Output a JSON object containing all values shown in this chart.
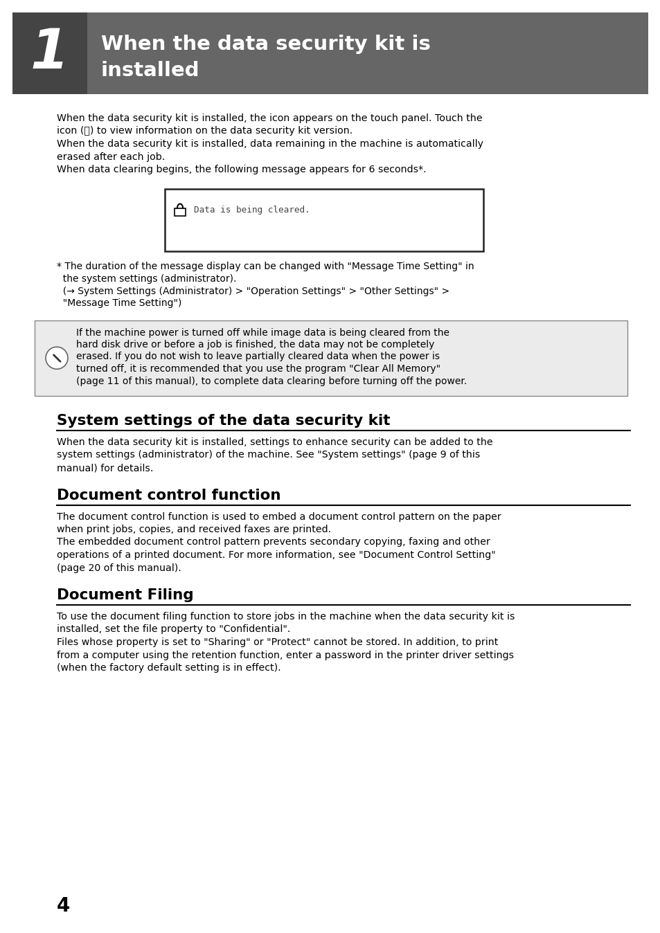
{
  "bg_color": "#ffffff",
  "header_bg_dark": "#444444",
  "header_bg_light": "#666666",
  "header_number": "1",
  "header_title_line1": "When the data security kit is",
  "header_title_line2": "installed",
  "body_line1": "When the data security kit is installed, the icon appears on the touch panel. Touch the",
  "body_line2": "icon (⚿) to view information on the data security kit version.",
  "body_line3": "When the data security kit is installed, data remaining in the machine is automatically",
  "body_line4": "erased after each job.",
  "body_line5": "When data clearing begins, the following message appears for 6 seconds*.",
  "dialog_text": "Data is being cleared.",
  "footnote_lines": [
    "* The duration of the message display can be changed with \"Message Time Setting\" in",
    "  the system settings (administrator).",
    "  (→ System Settings (Administrator) > \"Operation Settings\" > \"Other Settings\" >",
    "  \"Message Time Setting\")"
  ],
  "note_lines": [
    "If the machine power is turned off while image data is being cleared from the",
    "hard disk drive or before a job is finished, the data may not be completely",
    "erased. If you do not wish to leave partially cleared data when the power is",
    "turned off, it is recommended that you use the program \"Clear All Memory\"",
    "(page 11 of this manual), to complete data clearing before turning off the power."
  ],
  "section1_title": "System settings of the data security kit",
  "section1_lines": [
    "When the data security kit is installed, settings to enhance security can be added to the",
    "system settings (administrator) of the machine. See \"System settings\" (page 9 of this",
    "manual) for details."
  ],
  "section2_title": "Document control function",
  "section2_lines": [
    "The document control function is used to embed a document control pattern on the paper",
    "when print jobs, copies, and received faxes are printed.",
    "The embedded document control pattern prevents secondary copying, faxing and other",
    "operations of a printed document. For more information, see \"Document Control Setting\"",
    "(page 20 of this manual)."
  ],
  "section3_title": "Document Filing",
  "section3_lines": [
    "To use the document filing function to store jobs in the machine when the data security kit is",
    "installed, set the file property to \"Confidential\".",
    "Files whose property is set to \"Sharing\" or \"Protect\" cannot be stored. In addition, to print",
    "from a computer using the retention function, enter a password in the printer driver settings",
    "(when the factory default setting is in effect)."
  ],
  "page_number": "4"
}
